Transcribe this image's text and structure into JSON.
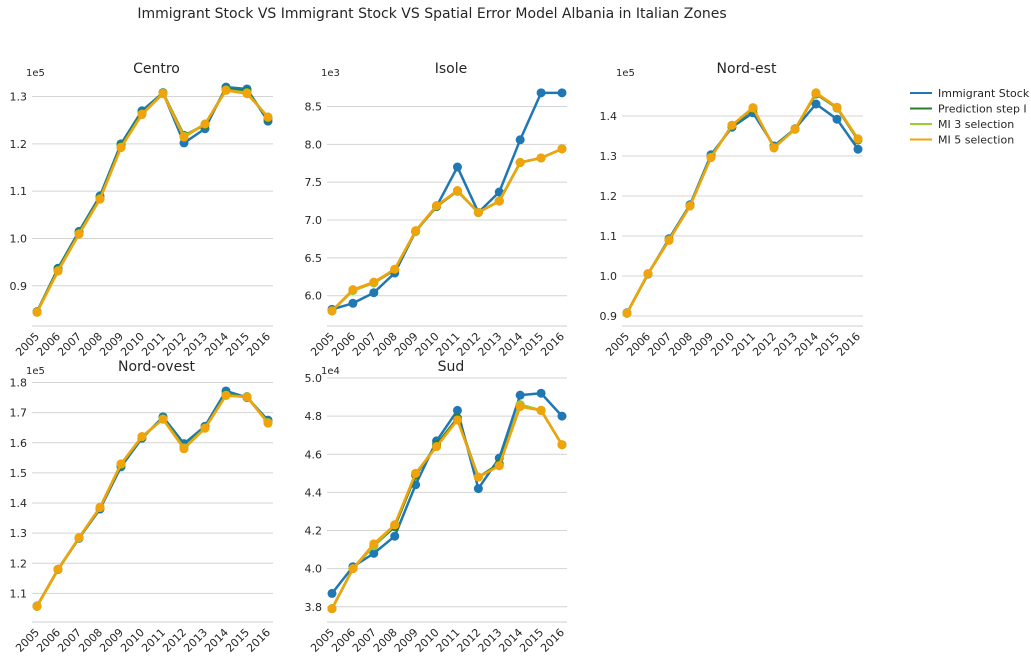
{
  "title": "Immigrant Stock VS Immigrant Stock VS Spatial Error Model Albania in Italian Zones",
  "legend": {
    "placement": "right",
    "entries": [
      {
        "label": "Immigrant Stock",
        "color": "#1f77b4"
      },
      {
        "label": "Prediction step I",
        "color": "#2a7d2a"
      },
      {
        "label": "MI 3 selection",
        "color": "#9acd32"
      },
      {
        "label": "MI 5 selection",
        "color": "#f0a30a"
      }
    ]
  },
  "chart_data": [
    {
      "type": "line",
      "title": "Centro",
      "multiplier": "1e5",
      "categories": [
        "2005",
        "2006",
        "2007",
        "2008",
        "2009",
        "2010",
        "2011",
        "2012",
        "2013",
        "2014",
        "2015",
        "2016"
      ],
      "yticks": [
        "0.9",
        "1.0",
        "1.1",
        "1.2",
        "1.3"
      ],
      "ylim": [
        0.815,
        1.335
      ],
      "grid": true,
      "series": [
        {
          "name": "Immigrant Stock",
          "color": "#1f77b4",
          "values": [
            0.845,
            0.937,
            1.015,
            1.09,
            1.2,
            1.27,
            1.308,
            1.202,
            1.232,
            1.32,
            1.316,
            1.248
          ]
        },
        {
          "name": "Prediction step I",
          "color": "#2a7d2a",
          "values": [
            0.845,
            0.935,
            1.012,
            1.086,
            1.196,
            1.265,
            1.308,
            1.218,
            1.24,
            1.316,
            1.311,
            1.254
          ]
        },
        {
          "name": "MI 3 selection",
          "color": "#9acd32",
          "values": [
            0.844,
            0.932,
            1.01,
            1.084,
            1.193,
            1.263,
            1.307,
            1.216,
            1.242,
            1.314,
            1.308,
            1.256
          ]
        },
        {
          "name": "MI 5 selection",
          "color": "#f0a30a",
          "values": [
            0.844,
            0.931,
            1.009,
            1.083,
            1.192,
            1.262,
            1.306,
            1.214,
            1.242,
            1.313,
            1.306,
            1.257
          ]
        }
      ]
    },
    {
      "type": "line",
      "title": "Isole",
      "multiplier": "1e3",
      "categories": [
        "2005",
        "2006",
        "2007",
        "2008",
        "2009",
        "2010",
        "2011",
        "2012",
        "2013",
        "2014",
        "2015",
        "2016"
      ],
      "yticks": [
        "6.0",
        "6.5",
        "7.0",
        "7.5",
        "8.0",
        "8.5"
      ],
      "ylim": [
        5.6,
        8.85
      ],
      "grid": true,
      "series": [
        {
          "name": "Immigrant Stock",
          "color": "#1f77b4",
          "values": [
            5.82,
            5.9,
            6.04,
            6.3,
            6.85,
            7.18,
            7.7,
            7.1,
            7.37,
            8.06,
            8.68,
            8.68
          ]
        },
        {
          "name": "Prediction step I",
          "color": "#2a7d2a",
          "values": [
            5.8,
            6.07,
            6.17,
            6.34,
            6.85,
            7.18,
            7.38,
            7.1,
            7.25,
            7.76,
            7.82,
            7.94
          ]
        },
        {
          "name": "MI 3 selection",
          "color": "#9acd32",
          "values": [
            5.8,
            6.07,
            6.17,
            6.35,
            6.85,
            7.19,
            7.38,
            7.1,
            7.25,
            7.76,
            7.82,
            7.94
          ]
        },
        {
          "name": "MI 5 selection",
          "color": "#f0a30a",
          "values": [
            5.8,
            6.08,
            6.18,
            6.35,
            6.86,
            7.19,
            7.39,
            7.1,
            7.25,
            7.76,
            7.82,
            7.94
          ]
        }
      ]
    },
    {
      "type": "line",
      "title": "Nord-est",
      "multiplier": "1e5",
      "categories": [
        "2005",
        "2006",
        "2007",
        "2008",
        "2009",
        "2010",
        "2011",
        "2012",
        "2013",
        "2014",
        "2015",
        "2016"
      ],
      "yticks": [
        "0.9",
        "1.0",
        "1.1",
        "1.2",
        "1.3",
        "1.4"
      ],
      "ylim": [
        0.875,
        1.49
      ],
      "grid": true,
      "series": [
        {
          "name": "Immigrant Stock",
          "color": "#1f77b4",
          "values": [
            0.908,
            1.005,
            1.093,
            1.178,
            1.303,
            1.372,
            1.408,
            1.325,
            1.368,
            1.43,
            1.392,
            1.317
          ]
        },
        {
          "name": "Prediction step I",
          "color": "#2a7d2a",
          "values": [
            0.907,
            1.005,
            1.09,
            1.176,
            1.298,
            1.376,
            1.418,
            1.322,
            1.367,
            1.455,
            1.42,
            1.34
          ]
        },
        {
          "name": "MI 3 selection",
          "color": "#9acd32",
          "values": [
            0.907,
            1.006,
            1.09,
            1.175,
            1.297,
            1.377,
            1.42,
            1.321,
            1.367,
            1.457,
            1.421,
            1.342
          ]
        },
        {
          "name": "MI 5 selection",
          "color": "#f0a30a",
          "values": [
            0.907,
            1.006,
            1.089,
            1.175,
            1.296,
            1.377,
            1.421,
            1.32,
            1.367,
            1.458,
            1.422,
            1.343
          ]
        }
      ]
    },
    {
      "type": "line",
      "title": "Nord-ovest",
      "multiplier": "1e5",
      "categories": [
        "2005",
        "2006",
        "2007",
        "2008",
        "2009",
        "2010",
        "2011",
        "2012",
        "2013",
        "2014",
        "2015",
        "2016"
      ],
      "yticks": [
        "1.1",
        "1.2",
        "1.3",
        "1.4",
        "1.5",
        "1.6",
        "1.7",
        "1.8"
      ],
      "ylim": [
        1.005,
        1.815
      ],
      "grid": true,
      "series": [
        {
          "name": "Immigrant Stock",
          "color": "#1f77b4",
          "values": [
            1.058,
            1.18,
            1.283,
            1.38,
            1.52,
            1.615,
            1.686,
            1.597,
            1.655,
            1.772,
            1.75,
            1.675
          ]
        },
        {
          "name": "Prediction step I",
          "color": "#2a7d2a",
          "values": [
            1.057,
            1.179,
            1.284,
            1.384,
            1.527,
            1.619,
            1.68,
            1.585,
            1.65,
            1.76,
            1.753,
            1.668
          ]
        },
        {
          "name": "MI 3 selection",
          "color": "#9acd32",
          "values": [
            1.057,
            1.18,
            1.285,
            1.385,
            1.529,
            1.62,
            1.679,
            1.583,
            1.649,
            1.758,
            1.752,
            1.667
          ]
        },
        {
          "name": "MI 5 selection",
          "color": "#f0a30a",
          "values": [
            1.057,
            1.18,
            1.285,
            1.386,
            1.53,
            1.621,
            1.678,
            1.58,
            1.648,
            1.757,
            1.752,
            1.665
          ]
        }
      ]
    },
    {
      "type": "line",
      "title": "Sud",
      "multiplier": "1e4",
      "categories": [
        "2005",
        "2006",
        "2007",
        "2008",
        "2009",
        "2010",
        "2011",
        "2012",
        "2013",
        "2014",
        "2015",
        "2016"
      ],
      "yticks": [
        "3.8",
        "4.0",
        "4.2",
        "4.4",
        "4.6",
        "4.8",
        "5.0"
      ],
      "ylim": [
        3.72,
        5.0
      ],
      "grid": true,
      "series": [
        {
          "name": "Immigrant Stock",
          "color": "#1f77b4",
          "values": [
            3.87,
            4.01,
            4.08,
            4.17,
            4.44,
            4.67,
            4.83,
            4.42,
            4.58,
            4.91,
            4.92,
            4.8
          ]
        },
        {
          "name": "Prediction step I",
          "color": "#2a7d2a",
          "values": [
            3.79,
            4.0,
            4.12,
            4.22,
            4.49,
            4.65,
            4.79,
            4.48,
            4.55,
            4.86,
            4.83,
            4.65
          ]
        },
        {
          "name": "MI 3 selection",
          "color": "#9acd32",
          "values": [
            3.79,
            4.0,
            4.12,
            4.23,
            4.5,
            4.64,
            4.78,
            4.48,
            4.54,
            4.86,
            4.83,
            4.65
          ]
        },
        {
          "name": "MI 5 selection",
          "color": "#f0a30a",
          "values": [
            3.79,
            4.0,
            4.13,
            4.23,
            4.5,
            4.64,
            4.78,
            4.48,
            4.54,
            4.85,
            4.83,
            4.65
          ]
        }
      ]
    }
  ]
}
